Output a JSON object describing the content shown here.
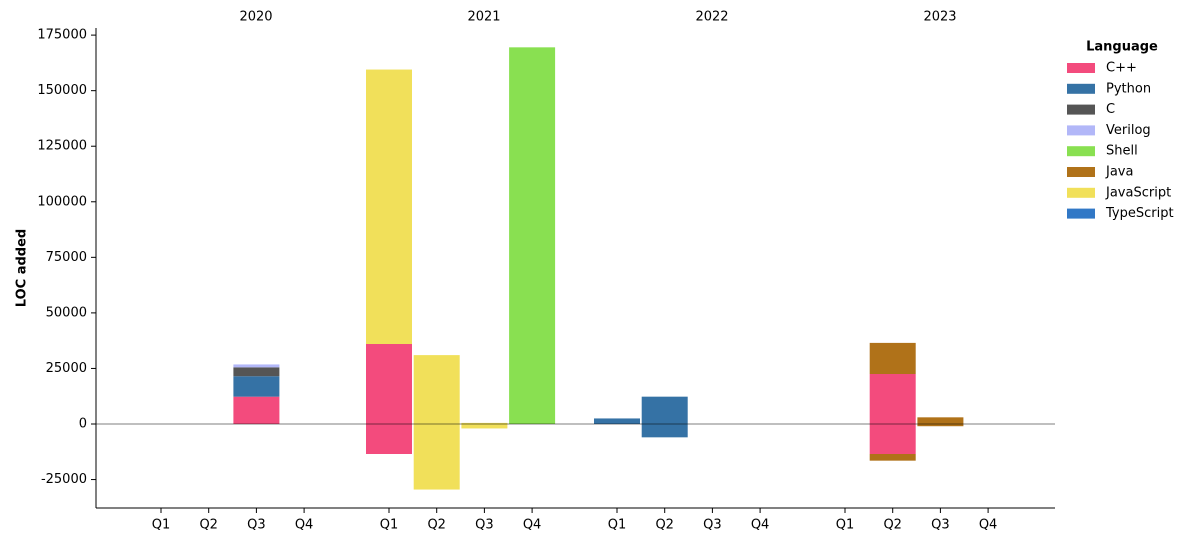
{
  "chart_data": {
    "type": "bar",
    "stacked": true,
    "y_label": "LOC added",
    "groups": [
      "2020",
      "2021",
      "2022",
      "2023"
    ],
    "categories": [
      "Q1",
      "Q2",
      "Q3",
      "Q4",
      "Q1",
      "Q2",
      "Q3",
      "Q4",
      "Q1",
      "Q2",
      "Q3",
      "Q4",
      "Q1",
      "Q2",
      "Q3",
      "Q4"
    ],
    "legend_title": "Language",
    "series": [
      {
        "name": "C++",
        "color": "#f34b7d",
        "values": [
          null,
          null,
          12300,
          null,
          36000,
          null,
          null,
          null,
          null,
          null,
          null,
          null,
          null,
          22500,
          null,
          null
        ],
        "removed": [
          null,
          null,
          null,
          null,
          -13500,
          null,
          null,
          null,
          null,
          null,
          null,
          null,
          null,
          -13500,
          null,
          null
        ]
      },
      {
        "name": "Python",
        "color": "#3572A5",
        "values": [
          null,
          null,
          9200,
          null,
          null,
          null,
          null,
          null,
          2500,
          12300,
          null,
          null,
          null,
          null,
          null,
          null
        ],
        "removed": [
          null,
          null,
          null,
          null,
          null,
          null,
          null,
          null,
          null,
          -6000,
          null,
          null,
          null,
          null,
          null,
          null
        ]
      },
      {
        "name": "C",
        "color": "#555555",
        "values": [
          null,
          null,
          4000,
          null,
          null,
          null,
          null,
          null,
          null,
          null,
          null,
          null,
          null,
          null,
          null,
          null
        ],
        "removed": [
          null,
          null,
          null,
          null,
          null,
          null,
          null,
          null,
          null,
          null,
          null,
          null,
          null,
          null,
          null,
          null
        ]
      },
      {
        "name": "Verilog",
        "color": "#b2b7f8",
        "values": [
          null,
          null,
          1300,
          null,
          null,
          null,
          null,
          null,
          null,
          null,
          null,
          null,
          null,
          null,
          null,
          null
        ],
        "removed": [
          null,
          null,
          null,
          null,
          null,
          null,
          null,
          null,
          null,
          null,
          null,
          null,
          null,
          null,
          null,
          null
        ]
      },
      {
        "name": "Shell",
        "color": "#89e051",
        "values": [
          null,
          null,
          null,
          null,
          null,
          null,
          null,
          169500,
          null,
          null,
          null,
          null,
          null,
          null,
          null,
          null
        ],
        "removed": [
          null,
          null,
          null,
          null,
          null,
          null,
          null,
          null,
          null,
          null,
          null,
          null,
          null,
          null,
          null,
          null
        ]
      },
      {
        "name": "Java",
        "color": "#b07219",
        "values": [
          null,
          null,
          null,
          null,
          null,
          null,
          null,
          null,
          null,
          null,
          null,
          null,
          null,
          14000,
          3000,
          null
        ],
        "removed": [
          null,
          null,
          null,
          null,
          null,
          null,
          null,
          null,
          null,
          null,
          null,
          null,
          null,
          -3000,
          -1000,
          null
        ]
      },
      {
        "name": "JavaScript",
        "color": "#f1e05a",
        "values": [
          null,
          null,
          null,
          null,
          123500,
          31000,
          500,
          null,
          null,
          null,
          null,
          null,
          null,
          null,
          null,
          null
        ],
        "removed": [
          null,
          null,
          null,
          null,
          null,
          -29500,
          -2000,
          null,
          null,
          null,
          null,
          null,
          null,
          null,
          null,
          null
        ]
      },
      {
        "name": "TypeScript",
        "color": "#3178c6",
        "values": [
          null,
          null,
          null,
          null,
          null,
          null,
          null,
          null,
          null,
          null,
          null,
          null,
          null,
          null,
          null,
          null
        ],
        "removed": [
          null,
          null,
          null,
          null,
          null,
          null,
          null,
          null,
          null,
          null,
          null,
          null,
          null,
          null,
          null,
          null
        ]
      }
    ],
    "ylim": [
      -37800,
      178200
    ],
    "yticks": [
      -25000,
      0,
      25000,
      50000,
      75000,
      100000,
      125000,
      150000,
      175000
    ]
  }
}
